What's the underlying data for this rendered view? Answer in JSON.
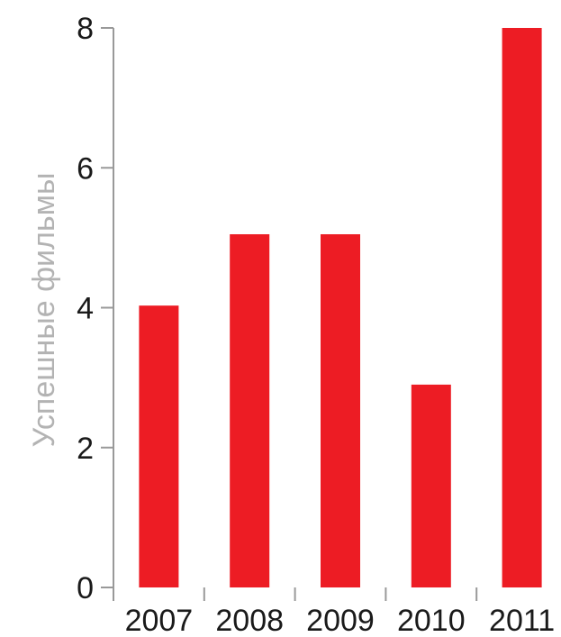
{
  "chart_data": {
    "type": "bar",
    "categories": [
      "2007",
      "2008",
      "2009",
      "2010",
      "2011"
    ],
    "values": [
      4.03,
      5.05,
      5.05,
      2.9,
      8.0
    ],
    "ylabel": "Успешные фильмы",
    "xlabel": "",
    "ylim": [
      0,
      8
    ],
    "yticks": [
      0,
      2,
      4,
      6,
      8
    ],
    "grid": false,
    "bar_color": "#ed1c24",
    "axis_color": "#999999",
    "label_color": "#1a1a1a",
    "ylabel_color": "#b3b3b3"
  }
}
